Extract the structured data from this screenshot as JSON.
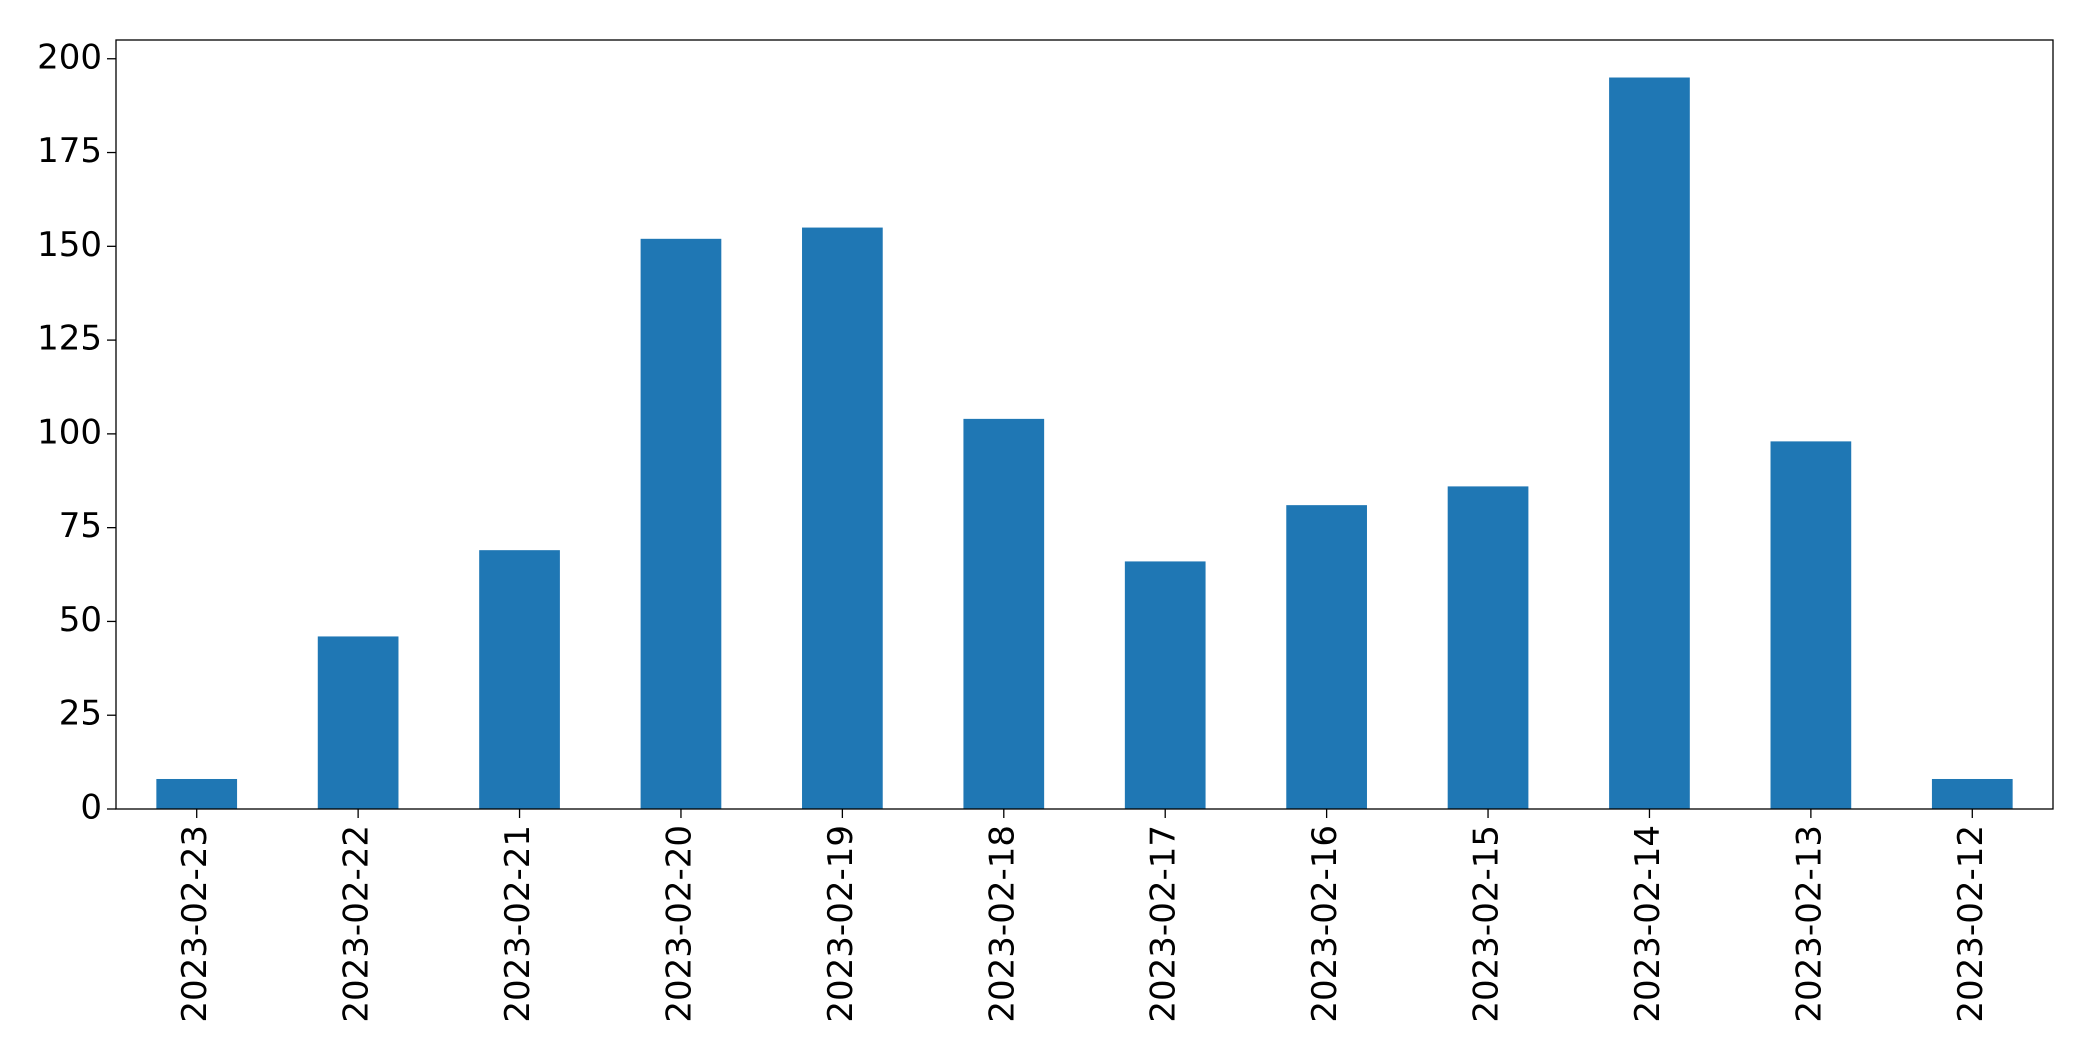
{
  "chart_data": {
    "type": "bar",
    "categories": [
      "2023-02-23",
      "2023-02-22",
      "2023-02-21",
      "2023-02-20",
      "2023-02-19",
      "2023-02-18",
      "2023-02-17",
      "2023-02-16",
      "2023-02-15",
      "2023-02-14",
      "2023-02-13",
      "2023-02-12"
    ],
    "values": [
      8,
      46,
      69,
      152,
      155,
      104,
      66,
      81,
      86,
      195,
      98,
      8
    ],
    "color": "#1f77b4",
    "ylim": [
      0,
      205
    ],
    "yticks": [
      0,
      25,
      50,
      75,
      100,
      125,
      150,
      175,
      200
    ],
    "grid": false
  }
}
